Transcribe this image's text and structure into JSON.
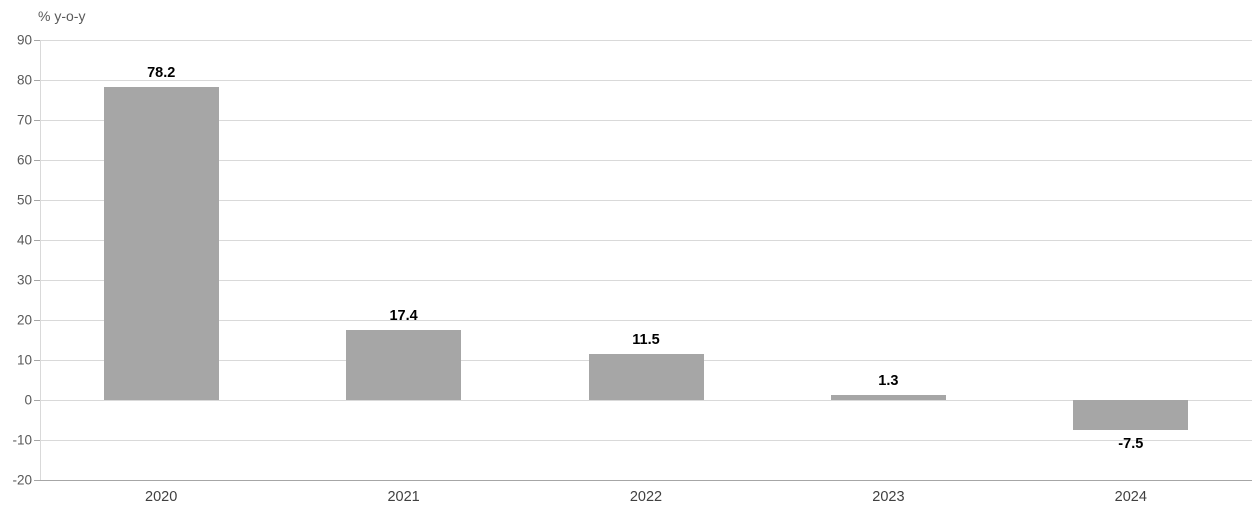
{
  "chart_data": {
    "type": "bar",
    "title": "",
    "xlabel": "",
    "ylabel": "% y-o-y",
    "categories": [
      "2020",
      "2021",
      "2022",
      "2023",
      "2024"
    ],
    "values": [
      78.2,
      17.4,
      11.5,
      1.3,
      -7.5
    ],
    "value_labels": [
      "78.2",
      "17.4",
      "11.5",
      "1.3",
      "-7.5"
    ],
    "ylim": [
      -20,
      90
    ],
    "ytick_interval": 10,
    "ytick_labels": [
      "90",
      "80",
      "70",
      "60",
      "50",
      "40",
      "30",
      "20",
      "10",
      "0",
      "-10",
      "-20"
    ],
    "grid": true,
    "legend": "none",
    "colors": {
      "bar": "#a6a6a6",
      "gridline": "#d9d9d9",
      "axis": "#a6a6a6",
      "tick_label": "#595959",
      "value_label": "#000000"
    }
  }
}
